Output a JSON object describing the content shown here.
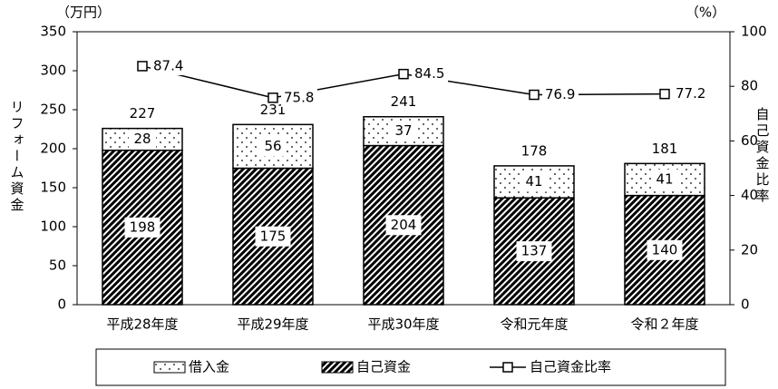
{
  "chart_data": {
    "type": "bar",
    "stacked": true,
    "categories": [
      "平成28年度",
      "平成29年度",
      "平成30年度",
      "令和元年度",
      "令和２年度"
    ],
    "series": [
      {
        "name": "借入金",
        "color": "#000000",
        "pattern": "dots",
        "values": [
          28,
          56,
          37,
          41,
          41
        ]
      },
      {
        "name": "自己資金",
        "color": "#000000",
        "pattern": "hatch",
        "values": [
          198,
          175,
          204,
          137,
          140
        ]
      },
      {
        "name": "自己資金比率",
        "type": "line",
        "axis": "y2",
        "color": "#000000",
        "values": [
          87.4,
          75.8,
          84.5,
          76.9,
          77.2
        ]
      }
    ],
    "totals": [
      227,
      231,
      241,
      178,
      181
    ],
    "y_label": "リフォーム資金",
    "y_unit": "（万円）",
    "y2_label": "自己資金比率",
    "y2_unit": "（%）",
    "ylim": [
      0,
      350
    ],
    "yticks": [
      0,
      50,
      100,
      150,
      200,
      250,
      300,
      350
    ],
    "y2lim": [
      0,
      100
    ],
    "y2ticks": [
      0,
      20,
      40,
      60,
      80,
      100
    ],
    "legend": "bottom"
  }
}
